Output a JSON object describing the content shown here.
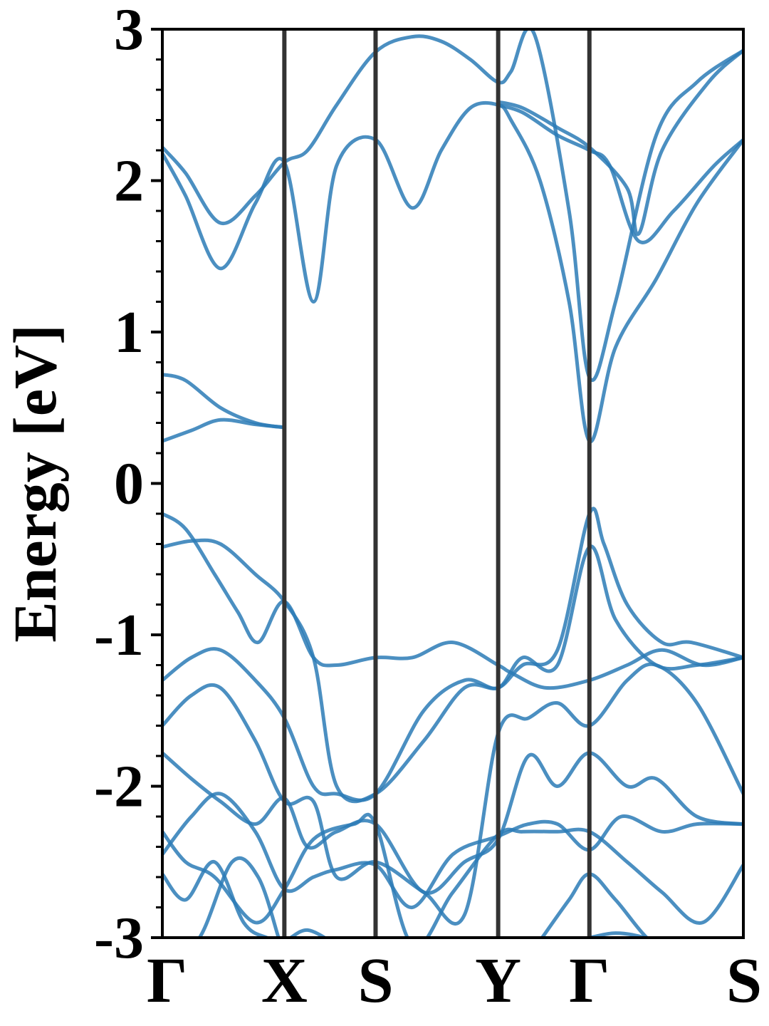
{
  "chart_data": {
    "type": "line",
    "title": "",
    "xlabel": "",
    "ylabel": "Energy [eV]",
    "ylim": [
      -3,
      3
    ],
    "yticks": [
      "3",
      "2",
      "1",
      "0",
      "-1",
      "-2",
      "-3"
    ],
    "ytick_values": [
      3,
      2,
      1,
      0,
      -1,
      -2,
      -3
    ],
    "xlim": [
      0,
      1
    ],
    "x_kpoints": [
      {
        "label": "Γ",
        "x": 0.0
      },
      {
        "label": "X",
        "x": 0.21
      },
      {
        "label": "S",
        "x": 0.367
      },
      {
        "label": "Y",
        "x": 0.578
      },
      {
        "label": "Γ",
        "x": 0.735
      },
      {
        "label": "S",
        "x": 1.0
      }
    ],
    "grid": false,
    "legend": "none",
    "colors": {
      "band": "#2c7bb6",
      "divider": "#333333",
      "axis": "#000000"
    },
    "series": [
      {
        "x": [
          0,
          0.04,
          0.1,
          0.16,
          0.21,
          0.25,
          0.3,
          0.367,
          0.43,
          0.48,
          0.53,
          0.578,
          0.6,
          0.64,
          0.7,
          0.735,
          0.78,
          0.85,
          0.92,
          1.0
        ],
        "y": [
          2.22,
          2.05,
          1.72,
          1.9,
          2.12,
          2.2,
          2.5,
          2.85,
          2.95,
          2.92,
          2.8,
          2.65,
          2.72,
          2.97,
          1.8,
          0.7,
          1.2,
          2.3,
          2.65,
          2.86
        ]
      },
      {
        "x": [
          0,
          0.04,
          0.1,
          0.16,
          0.21,
          0.26,
          0.3,
          0.367,
          0.43,
          0.48,
          0.53,
          0.578,
          0.6,
          0.65,
          0.7,
          0.735,
          0.78,
          0.85,
          0.92,
          1.0
        ],
        "y": [
          2.18,
          1.9,
          1.42,
          1.85,
          2.12,
          1.2,
          2.1,
          2.27,
          1.82,
          2.2,
          2.48,
          2.5,
          2.4,
          2.0,
          1.2,
          0.28,
          0.9,
          1.35,
          1.85,
          2.27
        ]
      },
      {
        "x": [
          0.578,
          0.62,
          0.68,
          0.735,
          0.77,
          0.82,
          0.88,
          0.95,
          1.0
        ],
        "y": [
          2.5,
          2.45,
          2.3,
          2.2,
          2.1,
          1.6,
          1.8,
          2.1,
          2.27
        ]
      },
      {
        "x": [
          0.578,
          0.62,
          0.68,
          0.735,
          0.8,
          0.82,
          0.86,
          0.94,
          1.0
        ],
        "y": [
          2.52,
          2.48,
          2.35,
          2.22,
          1.95,
          1.65,
          2.2,
          2.65,
          2.86
        ]
      },
      {
        "x": [
          0,
          0.04,
          0.1,
          0.16,
          0.21
        ],
        "y": [
          0.72,
          0.68,
          0.5,
          0.4,
          0.37
        ]
      },
      {
        "x": [
          0,
          0.05,
          0.1,
          0.16,
          0.21
        ],
        "y": [
          0.28,
          0.35,
          0.42,
          0.39,
          0.37
        ]
      },
      {
        "x": [
          0,
          0.04,
          0.09,
          0.13,
          0.165,
          0.21,
          0.26,
          0.3,
          0.367,
          0.43,
          0.5,
          0.578,
          0.6,
          0.66,
          0.735,
          0.8,
          0.86,
          0.93,
          1.0
        ],
        "y": [
          -0.2,
          -0.3,
          -0.6,
          -0.85,
          -1.05,
          -0.78,
          -1.15,
          -1.2,
          -1.15,
          -1.15,
          -1.05,
          -1.2,
          -1.25,
          -1.35,
          -1.3,
          -1.2,
          -1.1,
          -1.2,
          -1.15
        ]
      },
      {
        "x": [
          0,
          0.05,
          0.1,
          0.16,
          0.21,
          0.26,
          0.3,
          0.367,
          0.45,
          0.52,
          0.578,
          0.62,
          0.68,
          0.735,
          0.76,
          0.8,
          0.86,
          0.91,
          1.0
        ],
        "y": [
          -0.42,
          -0.38,
          -0.4,
          -0.6,
          -0.78,
          -1.15,
          -2.0,
          -2.05,
          -1.7,
          -1.35,
          -1.35,
          -1.2,
          -1.1,
          -0.2,
          -0.4,
          -0.8,
          -1.05,
          -1.05,
          -1.15
        ]
      },
      {
        "x": [
          0,
          0.05,
          0.1,
          0.16,
          0.21,
          0.26,
          0.3,
          0.367,
          0.45,
          0.52,
          0.578,
          0.62,
          0.68,
          0.735,
          0.78,
          0.85,
          0.92,
          1.0
        ],
        "y": [
          -1.3,
          -1.15,
          -1.1,
          -1.3,
          -1.55,
          -2.0,
          -2.05,
          -2.05,
          -1.5,
          -1.3,
          -1.35,
          -1.15,
          -1.2,
          -0.42,
          -0.9,
          -1.2,
          -1.2,
          -1.15
        ]
      },
      {
        "x": [
          0,
          0.05,
          0.1,
          0.16,
          0.21,
          0.26,
          0.3,
          0.367,
          0.45,
          0.52,
          0.578,
          0.63,
          0.68,
          0.735,
          0.8,
          0.85,
          0.92,
          1.0
        ],
        "y": [
          -1.6,
          -1.4,
          -1.35,
          -1.7,
          -2.1,
          -2.1,
          -2.6,
          -2.5,
          -2.7,
          -2.85,
          -1.65,
          -1.55,
          -1.45,
          -1.6,
          -1.3,
          -1.2,
          -1.45,
          -2.05
        ]
      },
      {
        "x": [
          0,
          0.05,
          0.1,
          0.16,
          0.21,
          0.25,
          0.3,
          0.367,
          0.45,
          0.52,
          0.578,
          0.63,
          0.68,
          0.735,
          0.8,
          0.85,
          0.92,
          1.0
        ],
        "y": [
          -1.78,
          -1.95,
          -2.1,
          -2.25,
          -2.08,
          -2.4,
          -2.3,
          -2.25,
          -2.7,
          -2.5,
          -2.35,
          -1.8,
          -2.0,
          -1.78,
          -2.0,
          -1.95,
          -2.2,
          -2.25
        ]
      },
      {
        "x": [
          0,
          0.05,
          0.1,
          0.16,
          0.21,
          0.26,
          0.3,
          0.367,
          0.43,
          0.5,
          0.578,
          0.63,
          0.68,
          0.735,
          0.79,
          0.86,
          0.92,
          1.0
        ],
        "y": [
          -2.45,
          -2.2,
          -2.05,
          -2.3,
          -2.68,
          -2.6,
          -2.55,
          -2.52,
          -2.8,
          -2.45,
          -2.33,
          -2.25,
          -2.25,
          -2.42,
          -2.2,
          -2.3,
          -2.25,
          -2.25
        ]
      },
      {
        "x": [
          0,
          0.04,
          0.09,
          0.16,
          0.21,
          0.26,
          0.33,
          0.367,
          0.43,
          0.5,
          0.578,
          0.62,
          0.68,
          0.735,
          0.8,
          0.86,
          0.93,
          1.0
        ],
        "y": [
          -2.3,
          -2.5,
          -2.6,
          -2.9,
          -2.68,
          -2.35,
          -2.25,
          -2.25,
          -3.05,
          -2.7,
          -2.32,
          -2.3,
          -2.3,
          -2.3,
          -2.5,
          -2.7,
          -2.9,
          -2.52
        ]
      },
      {
        "x": [
          0,
          0.04,
          0.09,
          0.14,
          0.18,
          0.21,
          0.25,
          0.3
        ],
        "y": [
          -2.58,
          -2.75,
          -2.5,
          -2.9,
          -3.0,
          -3.02,
          -2.95,
          -3.05
        ]
      },
      {
        "x": [
          0,
          0.06,
          0.12,
          0.165,
          0.2
        ],
        "y": [
          -3.0,
          -3.02,
          -2.5,
          -2.6,
          -3.0
        ]
      },
      {
        "x": [
          0.65,
          0.7,
          0.735,
          0.78,
          0.85,
          0.92
        ],
        "y": [
          -3.02,
          -2.75,
          -2.58,
          -2.75,
          -3.05,
          -3.05
        ]
      },
      {
        "x": [
          0.7,
          0.735,
          0.78,
          0.83,
          0.9
        ],
        "y": [
          -3.02,
          -3.0,
          -2.97,
          -3.0,
          -3.1
        ]
      }
    ]
  }
}
